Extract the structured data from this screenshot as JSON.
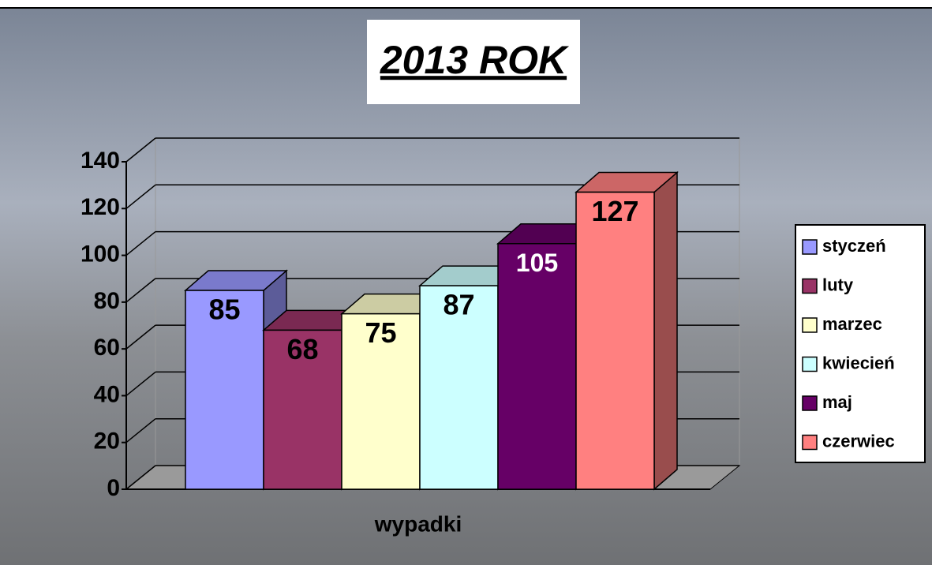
{
  "chart_data": {
    "type": "bar",
    "title": "2013 ROK",
    "x_label": "wypadki",
    "categories": [
      "wypadki"
    ],
    "series": [
      {
        "name": "styczeń",
        "color": "#9999ff",
        "values": [
          85
        ]
      },
      {
        "name": "luty",
        "color": "#993366",
        "values": [
          68
        ]
      },
      {
        "name": "marzec",
        "color": "#ffffcc",
        "values": [
          75
        ]
      },
      {
        "name": "kwiecień",
        "color": "#ccffff",
        "values": [
          87
        ]
      },
      {
        "name": "maj",
        "color": "#660066",
        "values": [
          105
        ]
      },
      {
        "name": "czerwiec",
        "color": "#ff8080",
        "values": [
          127
        ]
      }
    ],
    "ylim": [
      0,
      140
    ],
    "yticks": [
      0,
      20,
      40,
      60,
      80,
      100,
      120,
      140
    ],
    "grid": true,
    "legend": "right"
  }
}
